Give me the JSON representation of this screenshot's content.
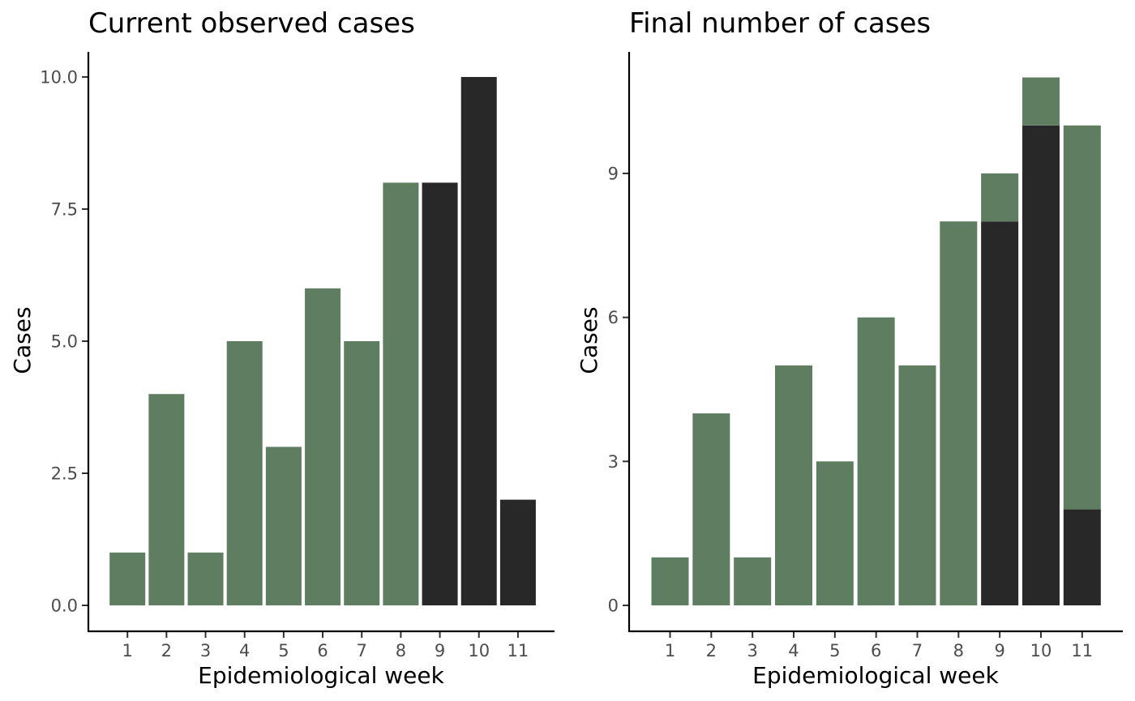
{
  "colors": {
    "observed": "#282828",
    "predicted": "#5f7d61"
  },
  "chart_data": [
    {
      "type": "bar",
      "title": "Current observed cases",
      "xlabel": "Epidemiological week",
      "ylabel": "Cases",
      "categories": [
        "1",
        "2",
        "3",
        "4",
        "5",
        "6",
        "7",
        "8",
        "9",
        "10",
        "11"
      ],
      "stacked": true,
      "ylim": [
        0,
        10.5
      ],
      "yticks": [
        0,
        2.5,
        5,
        7.5,
        10
      ],
      "ytick_labels": [
        "0.0",
        "2.5",
        "5.0",
        "7.5",
        "10.0"
      ],
      "series": [
        {
          "color": "#5f7d61",
          "values": [
            1,
            4,
            1,
            5,
            3,
            6,
            5,
            8,
            0,
            0,
            0
          ]
        },
        {
          "color": "#282828",
          "values": [
            0,
            0,
            0,
            0,
            0,
            0,
            0,
            0,
            8,
            10,
            2
          ]
        }
      ],
      "grid": false
    },
    {
      "type": "bar",
      "title": "Final number of cases",
      "xlabel": "Epidemiological week",
      "ylabel": "Cases",
      "categories": [
        "1",
        "2",
        "3",
        "4",
        "5",
        "6",
        "7",
        "8",
        "9",
        "10",
        "11"
      ],
      "stacked": true,
      "ylim": [
        0,
        11.5
      ],
      "yticks": [
        0,
        3,
        6,
        9
      ],
      "ytick_labels": [
        "0",
        "3",
        "6",
        "9"
      ],
      "series": [
        {
          "color": "#282828",
          "values": [
            0,
            0,
            0,
            0,
            0,
            0,
            0,
            0,
            8,
            10,
            2
          ]
        },
        {
          "color": "#5f7d61",
          "values": [
            1,
            4,
            1,
            5,
            3,
            6,
            5,
            8,
            1,
            1,
            8
          ]
        }
      ],
      "grid": false
    }
  ]
}
